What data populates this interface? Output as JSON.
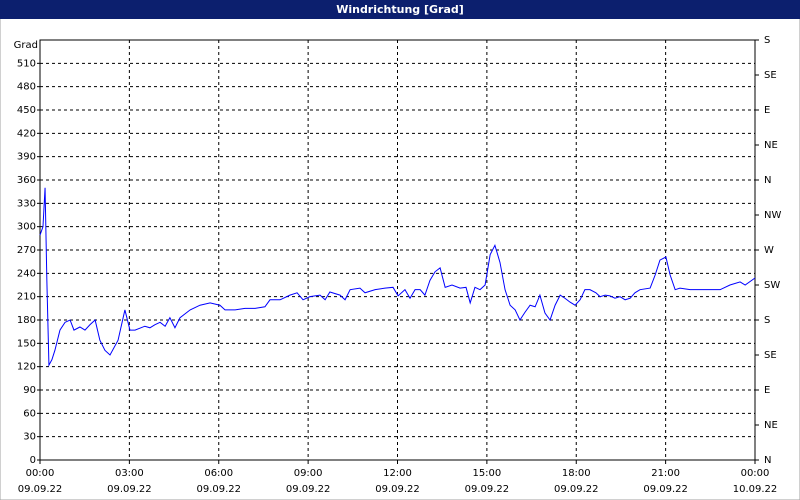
{
  "chart_data": {
    "type": "line",
    "title": "Windrichtung [Grad]",
    "y_label": "Grad",
    "xlim": [
      0,
      24
    ],
    "xticks": [
      {
        "value": 0,
        "label": "00:00"
      },
      {
        "value": 3,
        "label": "03:00"
      },
      {
        "value": 6,
        "label": "06:00"
      },
      {
        "value": 9,
        "label": "09:00"
      },
      {
        "value": 12,
        "label": "12:00"
      },
      {
        "value": 15,
        "label": "15:00"
      },
      {
        "value": 18,
        "label": "18:00"
      },
      {
        "value": 21,
        "label": "21:00"
      },
      {
        "value": 24,
        "label": "00:00"
      }
    ],
    "xtick_dates": [
      "09.09.22",
      "09.09.22",
      "09.09.22",
      "09.09.22",
      "09.09.22",
      "09.09.22",
      "09.09.22",
      "09.09.22",
      "10.09.22"
    ],
    "ylim": [
      0,
      540
    ],
    "yticks": [
      0,
      30,
      60,
      90,
      120,
      150,
      180,
      210,
      240,
      270,
      300,
      330,
      360,
      390,
      420,
      450,
      480,
      510
    ],
    "y2lim": [
      0,
      540
    ],
    "y2ticks": [
      {
        "value": 0,
        "label": "N"
      },
      {
        "value": 45,
        "label": "NE"
      },
      {
        "value": 90,
        "label": "E"
      },
      {
        "value": 135,
        "label": "SE"
      },
      {
        "value": 180,
        "label": "S"
      },
      {
        "value": 225,
        "label": "SW"
      },
      {
        "value": 270,
        "label": "W"
      },
      {
        "value": 315,
        "label": "NW"
      },
      {
        "value": 360,
        "label": "N"
      },
      {
        "value": 405,
        "label": "NE"
      },
      {
        "value": 450,
        "label": "E"
      },
      {
        "value": 495,
        "label": "SE"
      },
      {
        "value": 540,
        "label": "S"
      }
    ],
    "grid": true,
    "series": [
      {
        "color": "#0000ff",
        "x": [
          0,
          0.1,
          0.17,
          0.23,
          0.3,
          0.4,
          0.5,
          0.67,
          0.84,
          1.01,
          1.14,
          1.34,
          1.51,
          1.68,
          1.85,
          2.01,
          2.18,
          2.35,
          2.62,
          2.85,
          3.02,
          3.19,
          3.52,
          3.69,
          3.86,
          4.03,
          4.2,
          4.36,
          4.53,
          4.7,
          5.04,
          5.37,
          5.71,
          6.04,
          6.21,
          6.55,
          6.88,
          7.22,
          7.55,
          7.72,
          8.06,
          8.39,
          8.63,
          8.83,
          9.06,
          9.4,
          9.57,
          9.73,
          10.07,
          10.24,
          10.41,
          10.74,
          10.91,
          11.25,
          11.58,
          11.85,
          12.02,
          12.25,
          12.42,
          12.59,
          12.76,
          12.92,
          13.09,
          13.26,
          13.43,
          13.6,
          13.83,
          14.1,
          14.3,
          14.44,
          14.6,
          14.77,
          14.94,
          15.11,
          15.27,
          15.44,
          15.61,
          15.78,
          15.95,
          16.11,
          16.28,
          16.45,
          16.62,
          16.78,
          16.95,
          17.12,
          17.29,
          17.46,
          17.62,
          17.79,
          17.96,
          18.13,
          18.29,
          18.46,
          18.66,
          18.8,
          18.97,
          19.13,
          19.3,
          19.47,
          19.64,
          19.81,
          19.97,
          20.14,
          20.48,
          20.65,
          20.81,
          21.01,
          21.15,
          21.32,
          21.48,
          21.82,
          22.16,
          22.49,
          22.83,
          23.16,
          23.5,
          23.67,
          24
        ],
        "values": [
          289,
          300,
          350,
          231,
          122,
          129,
          141,
          167,
          177,
          180,
          167,
          171,
          167,
          174,
          180,
          154,
          141,
          135,
          154,
          193,
          167,
          167,
          172,
          170,
          174,
          177,
          172,
          183,
          170,
          183,
          193,
          199,
          202,
          199,
          193,
          193,
          195,
          195,
          197,
          206,
          206,
          212,
          215,
          206,
          210,
          212,
          206,
          216,
          212,
          206,
          219,
          221,
          215,
          219,
          221,
          222,
          211,
          219,
          208,
          219,
          219,
          212,
          231,
          242,
          247,
          222,
          225,
          221,
          222,
          202,
          222,
          219,
          225,
          264,
          276,
          254,
          219,
          199,
          193,
          180,
          190,
          199,
          197,
          212,
          189,
          180,
          199,
          212,
          208,
          203,
          199,
          206,
          219,
          219,
          215,
          210,
          212,
          211,
          208,
          210,
          206,
          208,
          215,
          219,
          221,
          238,
          257,
          261,
          238,
          219,
          221,
          219,
          219,
          219,
          219,
          225,
          229,
          225,
          234
        ]
      }
    ]
  }
}
